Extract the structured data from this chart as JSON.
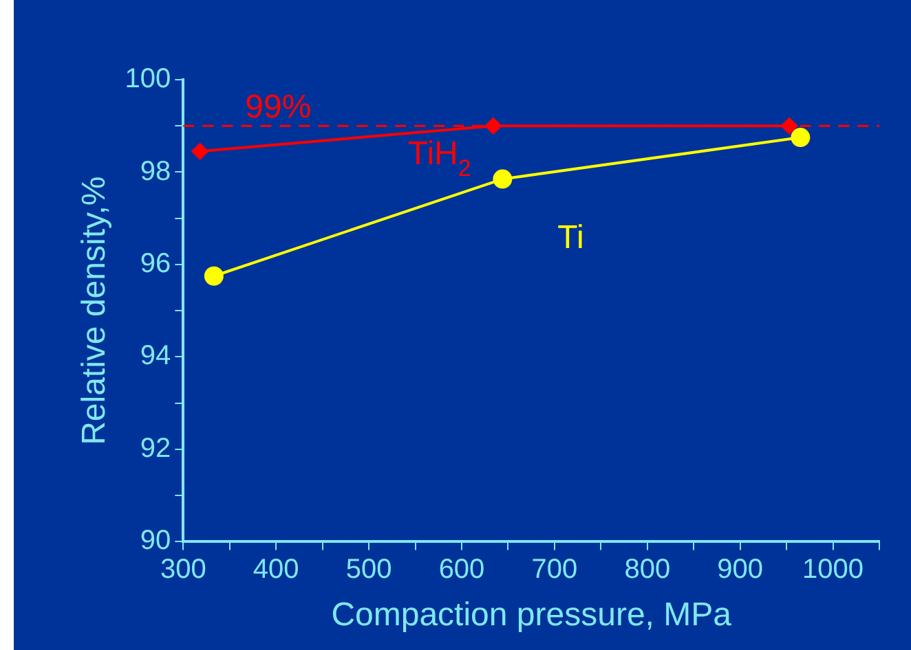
{
  "chart_data": {
    "type": "line",
    "xlabel": "Compaction pressure, MPa",
    "ylabel": "Relative density,%",
    "xlim": [
      300,
      1050
    ],
    "xticks": [
      300,
      {
        "value": 350,
        "label": null
      },
      400,
      {
        "value": 450,
        "label": null
      },
      500,
      {
        "value": 550,
        "label": null
      },
      600,
      {
        "value": 650,
        "label": null
      },
      700,
      {
        "value": 750,
        "label": null
      },
      800,
      {
        "value": 850,
        "label": null
      },
      900,
      {
        "value": 950,
        "label": null
      },
      1000,
      {
        "value": 1050,
        "label": null
      }
    ],
    "ylim": [
      90,
      100
    ],
    "yticks": [
      90,
      {
        "value": 91,
        "label": null
      },
      92,
      {
        "value": 93,
        "label": null
      },
      94,
      {
        "value": 95,
        "label": null
      },
      96,
      {
        "value": 97,
        "label": null
      },
      98,
      {
        "value": 99,
        "label": null
      },
      100
    ],
    "grid": false,
    "legend": false,
    "series": [
      {
        "name": "TiH$_{2}$",
        "color": "#ff0000",
        "marker": "diamond",
        "x": [
          318,
          634,
          953
        ],
        "values": [
          98.45,
          99,
          99
        ]
      },
      {
        "name": "Ti",
        "color": "#ffff00",
        "marker": "circle",
        "x": [
          333,
          644,
          965
        ],
        "values": [
          95.75,
          97.85,
          98.75
        ]
      }
    ],
    "ref_lines": [
      {
        "axis": "y",
        "value": 99,
        "label": "99%",
        "color": "#ff0000",
        "line_style": "dashed"
      }
    ]
  }
}
